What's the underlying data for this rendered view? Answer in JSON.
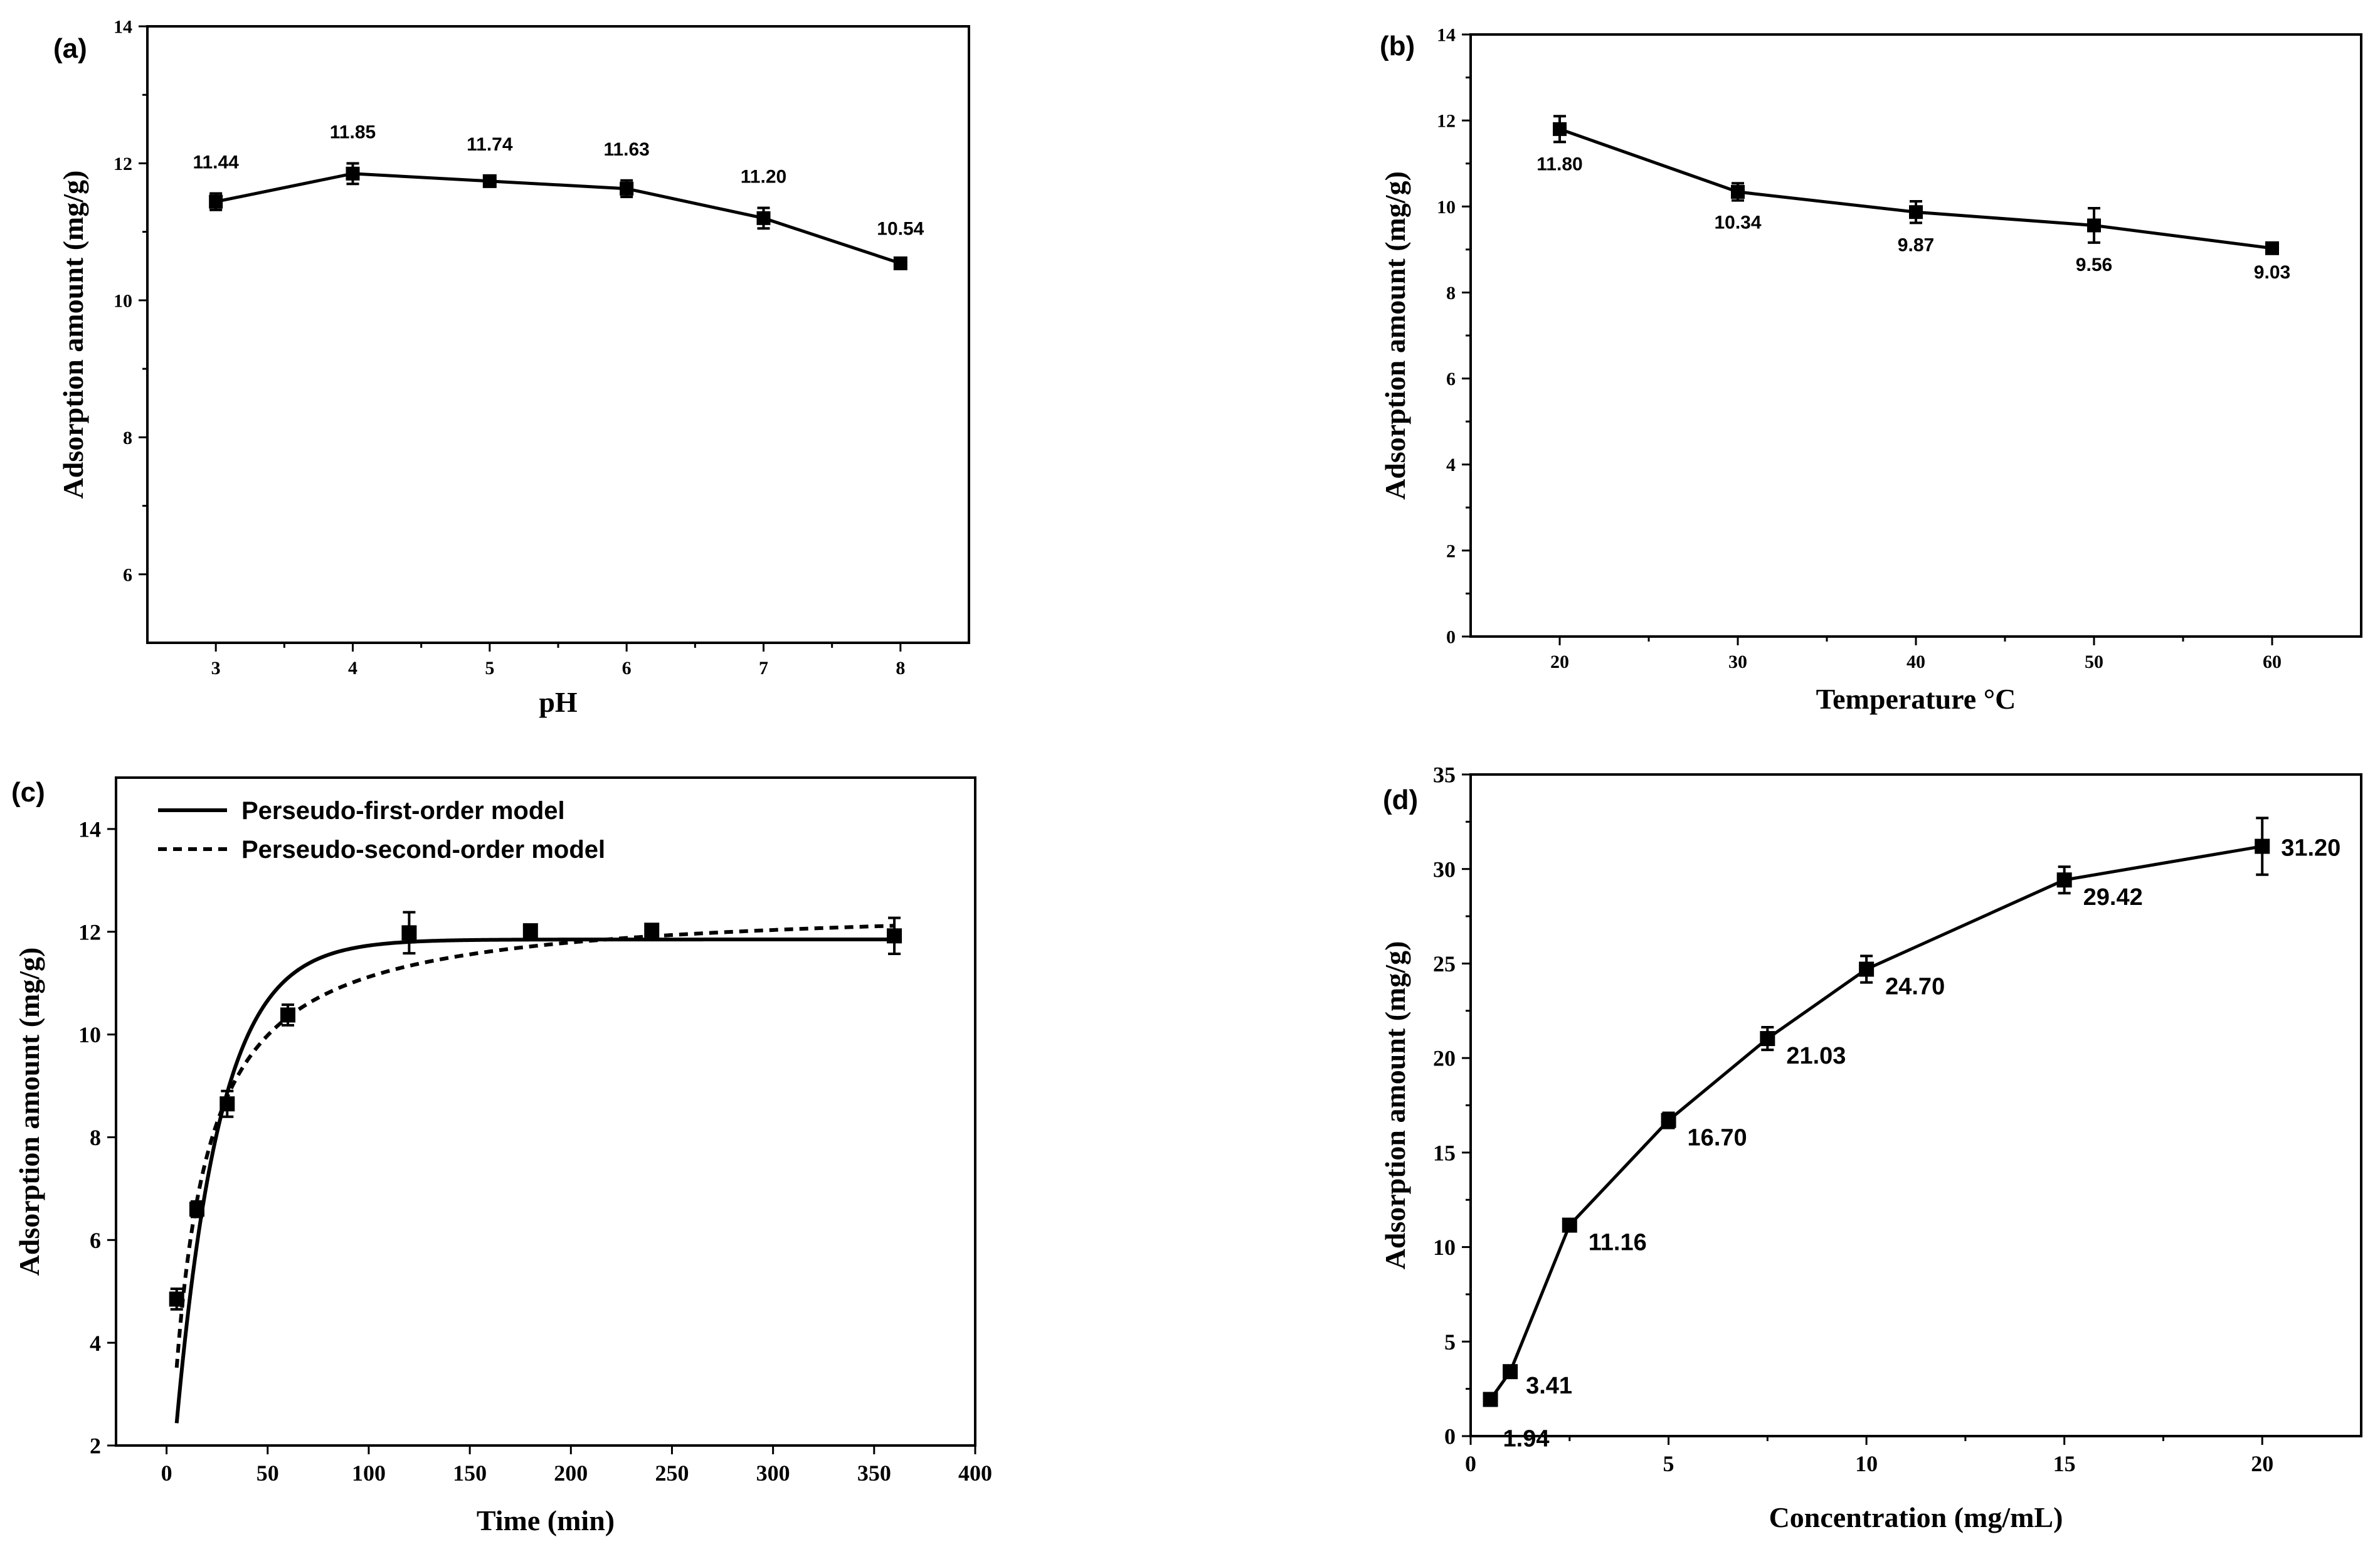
{
  "chart_data": [
    {
      "panel": "(a)",
      "type": "line",
      "xlabel": "pH",
      "ylabel": "Adsorption amount (mg/g)",
      "xlim": [
        2.5,
        8.5
      ],
      "ylim": [
        5,
        14
      ],
      "xticks": [
        3,
        4,
        5,
        6,
        7,
        8
      ],
      "yticks": [
        6,
        8,
        10,
        12,
        14
      ],
      "x": [
        3,
        4,
        5,
        6,
        7,
        8
      ],
      "values": [
        11.44,
        11.85,
        11.74,
        11.63,
        11.2,
        10.54
      ],
      "errors": [
        0.12,
        0.15,
        0.08,
        0.12,
        0.15,
        0.05
      ],
      "labels": [
        "11.44",
        "11.85",
        "11.74",
        "11.63",
        "11.20",
        "10.54"
      ],
      "label_position": "above"
    },
    {
      "panel": "(b)",
      "type": "line",
      "xlabel": "Temperature °C",
      "ylabel": "Adsorption amount (mg/g)",
      "xlim": [
        15,
        65
      ],
      "ylim": [
        0,
        14
      ],
      "xticks": [
        20,
        30,
        40,
        50,
        60
      ],
      "yticks": [
        0,
        2,
        4,
        6,
        8,
        10,
        12,
        14
      ],
      "x": [
        20,
        30,
        40,
        50,
        60
      ],
      "values": [
        11.8,
        10.34,
        9.87,
        9.56,
        9.03
      ],
      "errors": [
        0.3,
        0.2,
        0.25,
        0.4,
        0.05
      ],
      "labels": [
        "11.80",
        "10.34",
        "9.87",
        "9.56",
        "9.03"
      ],
      "label_position": "below"
    },
    {
      "panel": "(c)",
      "type": "scatter",
      "xlabel": "Time (min)",
      "ylabel": "Adsorption amount (mg/g)",
      "xlim": [
        -25,
        400
      ],
      "ylim": [
        2,
        15
      ],
      "xticks": [
        0,
        50,
        100,
        150,
        200,
        250,
        300,
        350,
        400
      ],
      "yticks": [
        2,
        4,
        6,
        8,
        10,
        12,
        14
      ],
      "x": [
        5,
        15,
        30,
        60,
        120,
        180,
        240,
        360
      ],
      "values": [
        4.85,
        6.6,
        8.65,
        10.38,
        11.98,
        12.02,
        12.03,
        11.92
      ],
      "errors": [
        0.2,
        0.15,
        0.25,
        0.2,
        0.4,
        0.1,
        0.1,
        0.35
      ],
      "series": [
        {
          "name": "Perseudo-first-order model",
          "style": "solid",
          "qe": 11.85,
          "k": 0.046
        },
        {
          "name": "Perseudo-second-order model",
          "style": "dashed",
          "qe": 12.55,
          "k": 0.0062
        }
      ],
      "curve_x_range": [
        5,
        360
      ],
      "legend_position": "top-left"
    },
    {
      "panel": "(d)",
      "type": "line",
      "xlabel": "Concentration (mg/mL)",
      "ylabel": "Adsorption amount (mg/g)",
      "xlim": [
        0,
        22.5
      ],
      "ylim": [
        0,
        35
      ],
      "xticks": [
        0,
        5,
        10,
        15,
        20
      ],
      "yticks": [
        0,
        5,
        10,
        15,
        20,
        25,
        30,
        35
      ],
      "x": [
        0.5,
        1,
        2.5,
        5,
        7.5,
        10,
        15,
        20
      ],
      "values": [
        1.94,
        3.41,
        11.16,
        16.7,
        21.03,
        24.7,
        29.42,
        31.2
      ],
      "errors": [
        0.1,
        0.1,
        0.15,
        0.4,
        0.6,
        0.7,
        0.7,
        1.5
      ],
      "labels": [
        "1.94",
        "3.41",
        "11.16",
        "16.70",
        "21.03",
        "24.70",
        "29.42",
        "31.20"
      ],
      "label_position": "right"
    }
  ]
}
